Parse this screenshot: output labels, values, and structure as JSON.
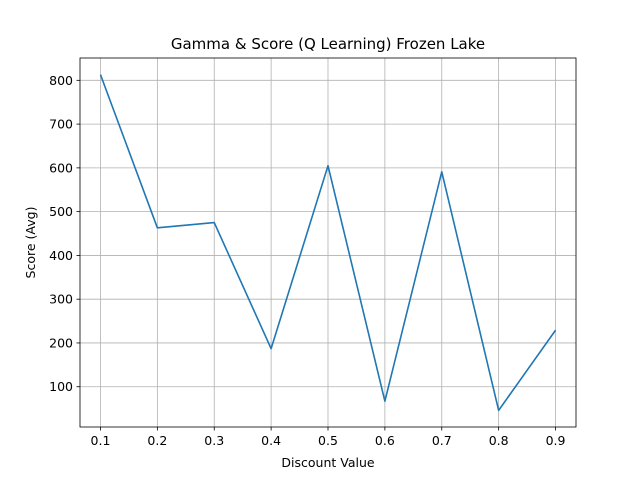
{
  "chart_data": {
    "type": "line",
    "title": "Gamma & Score (Q Learning) Frozen Lake",
    "xlabel": "Discount Value",
    "ylabel": "Score (Avg)",
    "x": [
      0.1,
      0.2,
      0.3,
      0.4,
      0.5,
      0.6,
      0.7,
      0.8,
      0.9
    ],
    "series": [
      {
        "values": [
          813,
          463,
          475,
          187,
          605,
          67,
          591,
          46,
          229
        ],
        "color": "#1f77b4"
      }
    ],
    "xlim": [
      0.064,
      0.936
    ],
    "ylim": [
      8,
      851
    ],
    "xticks": [
      0.1,
      0.2,
      0.3,
      0.4,
      0.5,
      0.6,
      0.7,
      0.8,
      0.9
    ],
    "xtick_labels": [
      "0.1",
      "0.2",
      "0.3",
      "0.4",
      "0.5",
      "0.6",
      "0.7",
      "0.8",
      "0.9"
    ],
    "yticks": [
      100,
      200,
      300,
      400,
      500,
      600,
      700,
      800
    ],
    "ytick_labels": [
      "100",
      "200",
      "300",
      "400",
      "500",
      "600",
      "700",
      "800"
    ],
    "grid": true,
    "legend": false
  }
}
